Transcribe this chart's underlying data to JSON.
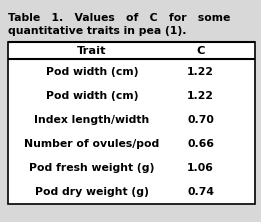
{
  "title_line1": "Table   1.   Values   of   C   for   some",
  "title_line2": "quantitative traits in pea (1).",
  "col_headers": [
    "Trait",
    "C"
  ],
  "rows": [
    [
      "Pod width (cm)",
      "1.22"
    ],
    [
      "Pod width (cm)",
      "1.22"
    ],
    [
      "Index length/width",
      "0.70"
    ],
    [
      "Number of ovules/pod",
      "0.66"
    ],
    [
      "Pod fresh weight (g)",
      "1.06"
    ],
    [
      "Pod dry weight (g)",
      "0.74"
    ]
  ],
  "bg_color": "#d8d8d8",
  "outer_box_color": "#000000",
  "table_bg": "#ffffff",
  "font_family": "DejaVu Sans",
  "title_fontsize": 7.8,
  "header_fontsize": 8.2,
  "row_fontsize": 7.8,
  "fig_width": 2.61,
  "fig_height": 2.22,
  "dpi": 100
}
